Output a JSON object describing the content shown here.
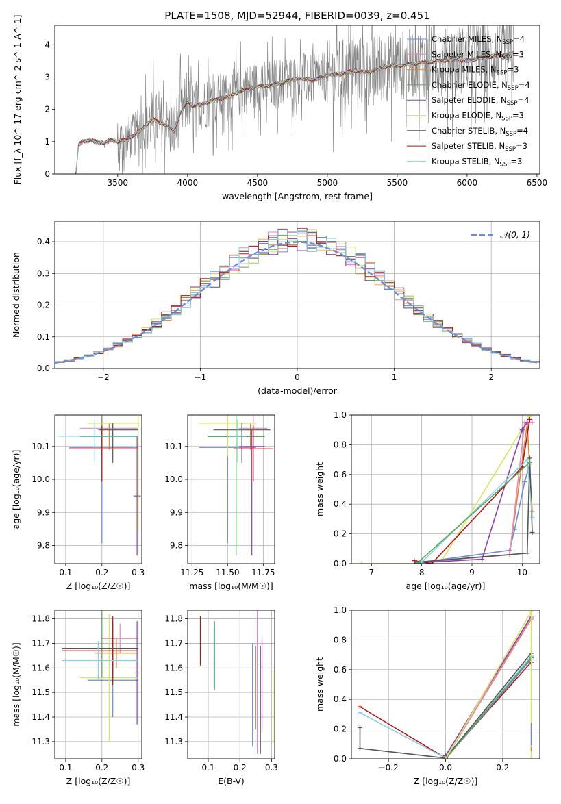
{
  "title": "PLATE=1508, MJD=52944, FIBERID=0039, z=0.451",
  "colors": {
    "blue": "#6a8bd8",
    "orange": "#e2832d",
    "green": "#5aa55a",
    "purple": "#8b3fb0",
    "yellow": "#d6e65a",
    "gray": "#555555",
    "red": "#b81414",
    "cyan": "#86d0e4",
    "pink": "#e78ac3",
    "spectrum": "#808080"
  },
  "chart_data": [
    {
      "id": "spectrum",
      "type": "line",
      "xlabel": "wavelength [Angstrom, rest frame]",
      "ylabel": "Flux [f_λ 10^-17 erg cm^-2 s^-1 A^-1]",
      "xlim": [
        3050,
        6520
      ],
      "ylim": [
        0,
        4.6
      ],
      "xticks": [
        3500,
        4000,
        4500,
        5000,
        5500,
        6000,
        6500
      ],
      "yticks": [
        0,
        1,
        2,
        3,
        4
      ],
      "grid": false,
      "legend_position": "top-right",
      "legend": [
        {
          "label": "Chabrier MILES, N",
          "sub": "SSP",
          "eq": "=4",
          "color": "blue"
        },
        {
          "label": "Salpeter MILES, N",
          "sub": "SSP",
          "eq": "=3",
          "color": "pink"
        },
        {
          "label": "Kroupa MILES, N",
          "sub": "SSP",
          "eq": "=3",
          "color": "orange"
        },
        {
          "label": "Chabrier ELODIE, N",
          "sub": "SSP",
          "eq": "=4",
          "color": "green"
        },
        {
          "label": "Salpeter ELODIE, N",
          "sub": "SSP",
          "eq": "=4",
          "color": "purple"
        },
        {
          "label": "Kroupa ELODIE, N",
          "sub": "SSP",
          "eq": "=3",
          "color": "yellow"
        },
        {
          "label": "Chabrier STELIB, N",
          "sub": "SSP",
          "eq": "=4",
          "color": "gray"
        },
        {
          "label": "Salpeter STELIB, N",
          "sub": "SSP",
          "eq": "=3",
          "color": "red"
        },
        {
          "label": "Kroupa STELIB, N",
          "sub": "SSP",
          "eq": "=3",
          "color": "cyan"
        }
      ],
      "model": {
        "x": [
          3200,
          3220,
          3250,
          3300,
          3350,
          3400,
          3450,
          3500,
          3550,
          3600,
          3650,
          3700,
          3750,
          3800,
          3850,
          3900,
          3950,
          4000,
          4050,
          4100,
          4200,
          4300,
          4400,
          4500,
          4600,
          4700,
          4800,
          4900,
          5000,
          5100,
          5200,
          5300,
          5400,
          5500,
          5600,
          5700,
          5800,
          5900,
          6000,
          6100,
          6200,
          6300,
          6340
        ],
        "y": [
          0,
          0.9,
          1.0,
          1.05,
          1.0,
          0.95,
          1.05,
          1.0,
          1.05,
          1.15,
          1.3,
          1.5,
          1.7,
          1.6,
          1.5,
          1.3,
          1.9,
          2.2,
          2.1,
          2.15,
          2.3,
          2.4,
          2.6,
          2.7,
          2.75,
          2.85,
          2.95,
          2.9,
          3.05,
          3.1,
          3.2,
          3.15,
          3.3,
          3.35,
          3.4,
          3.45,
          3.5,
          3.55,
          3.5,
          3.6,
          3.65,
          3.7,
          3.75
        ]
      },
      "spectrum_note": ""
    },
    {
      "id": "residuals",
      "type": "line",
      "xlabel": "(data-model)/error",
      "ylabel": "Normed distribution",
      "xlim": [
        -2.5,
        2.5
      ],
      "ylim": [
        0,
        0.465
      ],
      "xticks": [
        -2,
        -1,
        0,
        1,
        2
      ],
      "yticks": [
        0,
        0.1,
        0.2,
        0.3,
        0.4
      ],
      "grid": true,
      "legend_position": "top-right",
      "legend_label": "𝒩(0, 1)",
      "gaussian": {
        "mean": 0,
        "sigma": 1,
        "color": "blue"
      },
      "bin_width": 0.1
    },
    {
      "id": "age-vs-Z",
      "type": "scatter",
      "xlabel": "Z [log₁₀(Z/Z☉)]",
      "ylabel": "age  [log₁₀(age/yr)]",
      "xlim": [
        0.07,
        0.31
      ],
      "ylim": [
        9.745,
        10.195
      ],
      "xticks": [
        0.1,
        0.2,
        0.3
      ],
      "yticks": [
        9.8,
        9.9,
        10.0,
        10.1
      ],
      "grid": true,
      "points": [
        {
          "color": "blue",
          "x": 0.2,
          "xerr": [
            0.09,
            0.1
          ],
          "y": 10.097,
          "yerr": [
            0.29,
            0.05
          ]
        },
        {
          "color": "pink",
          "x": 0.2,
          "xerr": [
            0.06,
            0.1
          ],
          "y": 10.155,
          "yerr": [
            0.04,
            0.04
          ]
        },
        {
          "color": "orange",
          "x": 0.22,
          "xerr": [
            0.05,
            0.08
          ],
          "y": 10.13,
          "yerr": [
            0.04,
            0.04
          ]
        },
        {
          "color": "green",
          "x": 0.2,
          "xerr": [
            0.06,
            0.1
          ],
          "y": 10.13,
          "yerr": [
            0.06,
            0.06
          ]
        },
        {
          "color": "purple",
          "x": 0.297,
          "xerr": [
            0.01,
            0.01
          ],
          "y": 9.95,
          "yerr": [
            0.18,
            0.18
          ]
        },
        {
          "color": "yellow",
          "x": 0.3,
          "xerr": [
            0.14,
            0.005
          ],
          "y": 10.17,
          "yerr": [
            0.33,
            0.02
          ]
        },
        {
          "color": "gray",
          "x": 0.23,
          "xerr": [
            0.04,
            0.07
          ],
          "y": 10.15,
          "yerr": [
            0.1,
            0.02
          ]
        },
        {
          "color": "red",
          "x": 0.2,
          "xerr": [
            0.09,
            0.1
          ],
          "y": 10.093,
          "yerr": [
            0.1,
            0.07
          ]
        },
        {
          "color": "cyan",
          "x": 0.18,
          "xerr": [
            0.1,
            0.12
          ],
          "y": 10.131,
          "yerr": [
            0.08,
            0.05
          ]
        }
      ]
    },
    {
      "id": "age-vs-mass",
      "type": "scatter",
      "xlabel": "mass [log₁₀(M/M☉)]",
      "ylabel": "",
      "xlim": [
        11.22,
        11.83
      ],
      "ylim": [
        9.745,
        10.195
      ],
      "xticks": [
        11.25,
        11.5,
        11.75
      ],
      "xtick_labels": [
        "11.25",
        "11.50",
        "11.75"
      ],
      "yticks": [
        9.8,
        9.9,
        10.0,
        10.1
      ],
      "grid": true,
      "points": [
        {
          "color": "blue",
          "x": 11.5,
          "xerr": [
            0.2,
            0.2
          ],
          "y": 10.097,
          "yerr": [
            0.29,
            0.05
          ]
        },
        {
          "color": "pink",
          "x": 11.68,
          "xerr": [
            0.1,
            0.1
          ],
          "y": 10.155,
          "yerr": [
            0.04,
            0.04
          ]
        },
        {
          "color": "orange",
          "x": 11.66,
          "xerr": [
            0.05,
            0.05
          ],
          "y": 10.13,
          "yerr": [
            0.04,
            0.04
          ]
        },
        {
          "color": "green",
          "x": 11.56,
          "xerr": [
            0.2,
            0.2
          ],
          "y": 10.13,
          "yerr": [
            0.36,
            0.06
          ]
        },
        {
          "color": "purple",
          "x": 11.67,
          "xerr": [
            0.09,
            0.09
          ],
          "y": 10.1,
          "yerr": [
            0.33,
            0.05
          ]
        },
        {
          "color": "yellow",
          "x": 11.5,
          "xerr": [
            0.2,
            0.2
          ],
          "y": 10.17,
          "yerr": [
            0.1,
            0.02
          ]
        },
        {
          "color": "gray",
          "x": 11.6,
          "xerr": [
            0.2,
            0.2
          ],
          "y": 10.15,
          "yerr": [
            0.1,
            0.02
          ]
        },
        {
          "color": "red",
          "x": 11.68,
          "xerr": [
            0.14,
            0.14
          ],
          "y": 10.093,
          "yerr": [
            0.1,
            0.07
          ]
        },
        {
          "color": "cyan",
          "x": 11.57,
          "xerr": [
            0.06,
            0.06
          ],
          "y": 10.131,
          "yerr": [
            0.08,
            0.05
          ]
        }
      ]
    },
    {
      "id": "massweight-vs-age",
      "type": "line",
      "xlabel": "age  [log₁₀(age/yr)]",
      "ylabel": "mass weight",
      "xlim": [
        6.6,
        10.35
      ],
      "ylim": [
        0,
        1
      ],
      "xticks": [
        7,
        8,
        9,
        10
      ],
      "yticks": [
        0,
        0.2,
        0.4,
        0.6,
        0.8,
        1.0
      ],
      "grid": true,
      "series": [
        {
          "color": "yellow",
          "x": [
            6.8,
            7.9,
            8.4,
            10.15
          ],
          "y": [
            0,
            0,
            0.02,
            0.99
          ]
        },
        {
          "color": "blue",
          "x": [
            7.9,
            9.75,
            9.85,
            10.05,
            10.15
          ],
          "y": [
            0.005,
            0.09,
            0.23,
            0.55,
            0.67
          ]
        },
        {
          "color": "orange",
          "x": [
            8.0,
            9.75,
            10.1,
            10.2
          ],
          "y": [
            0.01,
            0.06,
            0.94,
            0.35
          ]
        },
        {
          "color": "pink",
          "x": [
            8.0,
            9.75,
            10.05,
            10.2
          ],
          "y": [
            0.01,
            0.06,
            0.95,
            0.95
          ]
        },
        {
          "color": "purple",
          "x": [
            7.9,
            9.2,
            10.0,
            10.1
          ],
          "y": [
            0.005,
            0.03,
            0.9,
            0.95
          ]
        },
        {
          "color": "red",
          "x": [
            7.85,
            8.2,
            10.0,
            10.15
          ],
          "y": [
            0.02,
            0.0,
            0.65,
            0.97
          ]
        },
        {
          "color": "gray",
          "x": [
            7.9,
            10.1,
            10.15,
            10.2
          ],
          "y": [
            0.01,
            0.07,
            0.71,
            0.21
          ]
        },
        {
          "color": "cyan",
          "x": [
            8.0,
            10.1,
            10.2
          ],
          "y": [
            0.01,
            0.7,
            0.31
          ]
        },
        {
          "color": "green",
          "x": [
            7.9,
            10.15
          ],
          "y": [
            0.0,
            0.68
          ]
        }
      ]
    },
    {
      "id": "mass-vs-Z",
      "type": "scatter",
      "xlabel": "Z [log₁₀(Z/Z☉)]",
      "ylabel": "mass [log₁₀(M/M☉)]",
      "xlim": [
        0.07,
        0.31
      ],
      "ylim": [
        11.23,
        11.835
      ],
      "xticks": [
        0.1,
        0.2,
        0.3
      ],
      "yticks": [
        11.3,
        11.4,
        11.5,
        11.6,
        11.7,
        11.8
      ],
      "grid": true,
      "points": [
        {
          "color": "blue",
          "x": 0.23,
          "xerr": [
            0.07,
            0.07
          ],
          "y": 11.55,
          "yerr": [
            0.15,
            0.15
          ]
        },
        {
          "color": "pink",
          "x": 0.25,
          "xerr": [
            0.05,
            0.05
          ],
          "y": 11.72,
          "yerr": [
            0.06,
            0.06
          ]
        },
        {
          "color": "orange",
          "x": 0.24,
          "xerr": [
            0.06,
            0.06
          ],
          "y": 11.66,
          "yerr": [
            0.06,
            0.06
          ]
        },
        {
          "color": "green",
          "x": 0.2,
          "xerr": [
            0.06,
            0.1
          ],
          "y": 11.68,
          "yerr": [
            0.12,
            0.42
          ]
        },
        {
          "color": "purple",
          "x": 0.297,
          "xerr": [
            0.005,
            0.005
          ],
          "y": 11.58,
          "yerr": [
            0.21,
            0.21
          ]
        },
        {
          "color": "yellow",
          "x": 0.22,
          "xerr": [
            0.08,
            0.08
          ],
          "y": 11.56,
          "yerr": [
            0.26,
            0.26
          ]
        },
        {
          "color": "gray",
          "x": 0.23,
          "xerr": [
            0.14,
            0.07
          ],
          "y": 11.68,
          "yerr": [
            0.11,
            0.11
          ]
        },
        {
          "color": "red",
          "x": 0.23,
          "xerr": [
            0.14,
            0.07
          ],
          "y": 11.67,
          "yerr": [
            0.14,
            0.14
          ]
        },
        {
          "color": "cyan",
          "x": 0.19,
          "xerr": [
            0.1,
            0.11
          ],
          "y": 11.63,
          "yerr": [
            0.08,
            0.08
          ]
        }
      ]
    },
    {
      "id": "mass-vs-EBV",
      "type": "scatter",
      "xlabel": "E(B-V)",
      "ylabel": "",
      "xlim": [
        0.035,
        0.31
      ],
      "ylim": [
        11.23,
        11.835
      ],
      "xticks": [
        0.1,
        0.2,
        0.3
      ],
      "yticks": [
        11.3,
        11.4,
        11.5,
        11.6,
        11.7,
        11.8
      ],
      "grid": true,
      "points": [
        {
          "color": "red",
          "x": 0.075,
          "y": 11.71,
          "yerr": [
            0.1,
            0.1
          ]
        },
        {
          "color": "green",
          "x": 0.12,
          "y": 11.65,
          "yerr": [
            0.14,
            0.14
          ]
        },
        {
          "color": "cyan",
          "x": 0.118,
          "y": 11.64,
          "yerr": [
            0.12,
            0.12
          ]
        },
        {
          "color": "blue",
          "x": 0.24,
          "y": 11.49,
          "yerr": [
            0.21,
            0.21
          ]
        },
        {
          "color": "orange",
          "x": 0.25,
          "y": 11.52,
          "yerr": [
            0.17,
            0.17
          ]
        },
        {
          "color": "pink",
          "x": 0.255,
          "y": 11.57,
          "yerr": [
            0.32,
            0.32
          ]
        },
        {
          "color": "purple",
          "x": 0.27,
          "y": 11.53,
          "yerr": [
            0.19,
            0.19
          ]
        },
        {
          "color": "gray",
          "x": 0.265,
          "y": 11.47,
          "yerr": [
            0.22,
            0.22
          ]
        },
        {
          "color": "yellow",
          "x": 0.305,
          "y": 11.44,
          "yerr": [
            0.15,
            0.15
          ]
        }
      ]
    },
    {
      "id": "massweight-vs-Z",
      "type": "line",
      "xlabel": "Z [log₁₀(Z/Z☉)]",
      "ylabel": "mass weight",
      "xlim": [
        -0.33,
        0.33
      ],
      "ylim": [
        0,
        1
      ],
      "xticks": [
        -0.2,
        0.0,
        0.2
      ],
      "yticks": [
        0,
        0.2,
        0.4,
        0.6,
        0.8,
        1.0
      ],
      "grid": true,
      "series": [
        {
          "color": "red",
          "x": [
            -0.3,
            0.0,
            0.3
          ],
          "y": [
            0.35,
            0.005,
            0.65
          ]
        },
        {
          "color": "cyan",
          "x": [
            -0.3,
            0.0,
            0.3
          ],
          "y": [
            0.31,
            0.005,
            0.69
          ]
        },
        {
          "color": "gray",
          "x": [
            -0.3,
            -0.3,
            0.0,
            0.3
          ],
          "y": [
            0.21,
            0.07,
            0.005,
            0.71
          ]
        },
        {
          "color": "blue",
          "x": [
            0.0,
            0.3
          ],
          "y": [
            0.0,
            0.67
          ]
        },
        {
          "color": "green",
          "x": [
            0.0,
            0.3
          ],
          "y": [
            0.0,
            0.68
          ]
        },
        {
          "color": "orange",
          "x": [
            0.0,
            0.3
          ],
          "y": [
            0.0,
            0.94
          ]
        },
        {
          "color": "pink",
          "x": [
            0.0,
            0.3
          ],
          "y": [
            0.0,
            0.95
          ]
        },
        {
          "color": "purple",
          "x": [
            0.0,
            0.3
          ],
          "y": [
            0.02,
            0.96
          ]
        },
        {
          "color": "yellow",
          "x": [
            0.0,
            0.3
          ],
          "y": [
            0.0,
            0.99
          ]
        }
      ],
      "vertical_markers": [
        {
          "color": "yellow",
          "x": 0.3,
          "y": [
            0.0,
            1.0
          ]
        },
        {
          "color": "blue",
          "x": 0.3,
          "y": [
            0.09,
            0.24
          ]
        },
        {
          "color": "orange",
          "x": 0.3,
          "y": [
            0.05,
            0.08
          ]
        }
      ]
    }
  ]
}
